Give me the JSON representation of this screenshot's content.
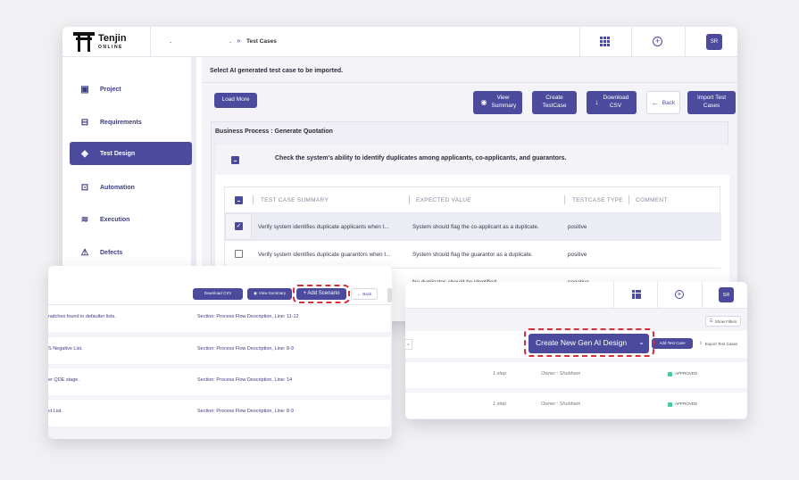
{
  "main": {
    "logo": {
      "name": "Tenjin",
      "sub": "ONLINE"
    },
    "breadcrumb": {
      "dot": ".",
      "sep": "»",
      "current": "Test Cases"
    },
    "avatar": "SR",
    "sidebar": [
      {
        "label": "Project",
        "icon": "project-icon",
        "glyph": "▣"
      },
      {
        "label": "Requirements",
        "icon": "requirements-icon",
        "glyph": "⊟"
      },
      {
        "label": "Test Design",
        "icon": "layers-icon",
        "glyph": "◈"
      },
      {
        "label": "Automation",
        "icon": "automation-icon",
        "glyph": "⊡"
      },
      {
        "label": "Execution",
        "icon": "execution-icon",
        "glyph": "≋"
      },
      {
        "label": "Defects",
        "icon": "warning-icon",
        "glyph": "⚠"
      }
    ],
    "heading": "Select AI generated test case to be imported.",
    "toolbar": {
      "load_more": "Load More",
      "view_summary": "View Summary",
      "create_testcase": "Create TestCase",
      "download_csv": "Download CSV",
      "back": "Back",
      "import_test_cases": "Import Test Cases"
    },
    "business_process": "Business Process : Generate Quotation",
    "scenario_title": "Check the system's ability to identify duplicates among applicants, co-applicants, and guarantors.",
    "table": {
      "headers": [
        "TEST CASE SUMMARY",
        "EXPECTED VALUE",
        "TESTCASE TYPE",
        "COMMENT"
      ],
      "rows": [
        {
          "checked": true,
          "summary": "Verify system identifies duplicate applicants when t...",
          "expected": "System should flag the co-applicant as a duplicate.",
          "type": "positive"
        },
        {
          "checked": false,
          "summary": "Verify system identifies duplicate guarantors when t...",
          "expected": "System should flag the guarantor as a duplicate.",
          "type": "positive"
        },
        {
          "checked": false,
          "summary": "",
          "expected": "No duplicates should be identified.",
          "type": "negative"
        }
      ]
    }
  },
  "left_overlay": {
    "buttons": {
      "download_csv": "Download CSV",
      "view_summary": "View Summary",
      "add_scenario": "+ Add Scenario",
      "back": "Back"
    },
    "rows": [
      {
        "text": "natches found in defaulter lists.",
        "section": "Section: Process Flow Description, Line: 11-12"
      },
      {
        "text": "S Negative List.",
        "section": "Section: Process Flow Description, Line: 8-9"
      },
      {
        "text": "er QDE stage.",
        "section": "Section: Process Flow Description, Line: 14"
      },
      {
        "text": "ct List.",
        "section": "Section: Process Flow Description, Line: 8-9"
      }
    ]
  },
  "right_overlay": {
    "avatar": "SR",
    "show_filters": "Show Filters",
    "create_ai": "Create New Gen AI Design",
    "add_test_case": "Add Test Case",
    "export_test_cases": "Export Test Cases",
    "rows": [
      {
        "steps": "1 step",
        "owner": "Owner : Shubham",
        "status": "APPROVED"
      },
      {
        "steps": "1 step",
        "owner": "Owner : Shubham",
        "status": "APPROVED"
      }
    ]
  },
  "colors": {
    "primary": "#4b4a9c",
    "highlight": "#d62f3a",
    "approved": "#3fcf9b"
  }
}
